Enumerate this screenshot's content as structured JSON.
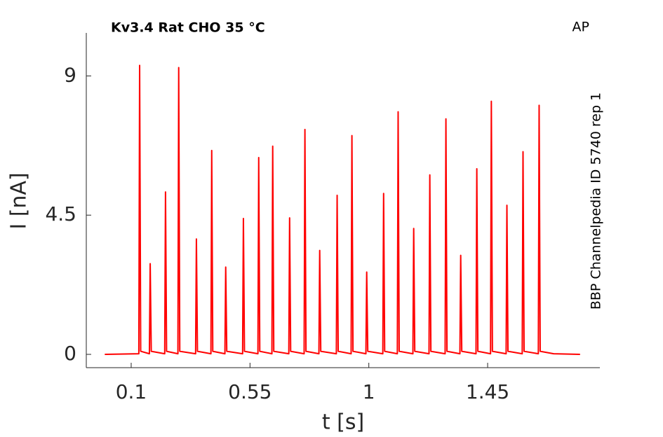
{
  "chart_data": {
    "type": "line",
    "title": "Kv3.4  Rat  CHO  35 °C",
    "annotation": "AP",
    "side_label": "BBP Channelpedia ID 5740 rep 1",
    "x_label": "t [s]",
    "y_label": "I [nA]",
    "xlim": [
      -0.07,
      1.875
    ],
    "ylim": [
      -0.43,
      10.39
    ],
    "xticks": [
      0.1,
      0.55,
      1,
      1.45
    ],
    "yticks": [
      0,
      4.5,
      9
    ],
    "series": [
      {
        "color": "#ff0000",
        "x": [
          0,
          0.129,
          0.132,
          0.136,
          0.169,
          0.172,
          0.176,
          0.227,
          0.23,
          0.234,
          0.277,
          0.28,
          0.284,
          0.344,
          0.347,
          0.351,
          0.402,
          0.405,
          0.409,
          0.455,
          0.458,
          0.462,
          0.522,
          0.525,
          0.529,
          0.58,
          0.583,
          0.587,
          0.633,
          0.636,
          0.64,
          0.697,
          0.7,
          0.704,
          0.755,
          0.758,
          0.762,
          0.811,
          0.814,
          0.818,
          0.877,
          0.88,
          0.884,
          0.933,
          0.936,
          0.94,
          0.989,
          0.992,
          0.996,
          1.053,
          1.056,
          1.06,
          1.108,
          1.111,
          1.115,
          1.167,
          1.17,
          1.174,
          1.228,
          1.231,
          1.235,
          1.289,
          1.292,
          1.296,
          1.345,
          1.348,
          1.352,
          1.406,
          1.409,
          1.413,
          1.461,
          1.464,
          1.468,
          1.52,
          1.523,
          1.527,
          1.581,
          1.584,
          1.588,
          1.642,
          1.645,
          1.649,
          1.7,
          1.8
        ],
        "values": [
          0,
          0.02,
          9.34,
          0.1,
          0.02,
          2.93,
          0.1,
          0.02,
          5.25,
          0.1,
          0.02,
          9.27,
          0.1,
          0.02,
          3.73,
          0.1,
          0.02,
          6.59,
          0.1,
          0.02,
          2.82,
          0.1,
          0.02,
          4.39,
          0.1,
          0.02,
          6.36,
          0.1,
          0.02,
          6.73,
          0.1,
          0.02,
          4.41,
          0.1,
          0.02,
          7.27,
          0.1,
          0.02,
          3.36,
          0.1,
          0.02,
          5.14,
          0.1,
          0.02,
          7.07,
          0.1,
          0.02,
          2.66,
          0.1,
          0.02,
          5.2,
          0.1,
          0.02,
          7.84,
          0.1,
          0.02,
          4.07,
          0.1,
          0.02,
          5.8,
          0.1,
          0.02,
          7.61,
          0.1,
          0.02,
          3.2,
          0.1,
          0.02,
          6.0,
          0.1,
          0.02,
          8.18,
          0.1,
          0.02,
          4.82,
          0.1,
          0.02,
          6.55,
          0.1,
          0.02,
          8.05,
          0.1,
          0.02,
          0
        ]
      }
    ]
  }
}
